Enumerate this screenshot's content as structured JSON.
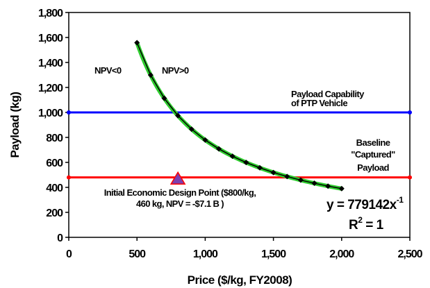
{
  "chart_data": {
    "type": "line",
    "xlabel": "Price ($/kg, FY2008)",
    "ylabel": "Payload (kg)",
    "xlim": [
      0,
      2500
    ],
    "ylim": [
      0,
      1800
    ],
    "x_ticks": [
      "0",
      "500",
      "1,000",
      "1,500",
      "2,000",
      "2,500"
    ],
    "y_ticks": [
      "0",
      "200",
      "400",
      "600",
      "800",
      "1,000",
      "1,200",
      "1,400",
      "1,600",
      "1,800"
    ],
    "grid": false,
    "series": [
      {
        "type": "line-markers",
        "color": "#000000",
        "x": [
          500,
          600,
          700,
          800,
          900,
          1000,
          1100,
          1200,
          1300,
          1400,
          1500,
          1600,
          1700,
          1800,
          1900,
          2000
        ],
        "y": [
          1558,
          1299,
          1113,
          974,
          866,
          779,
          708,
          649,
          599,
          557,
          519,
          487,
          458,
          433,
          410,
          390
        ]
      },
      {
        "type": "fit",
        "color": "#2ecc2e",
        "x_range": [
          500,
          2000
        ],
        "coefficient": 779142,
        "exponent": -1
      },
      {
        "type": "hline",
        "color": "#0000ff",
        "y": 1000
      },
      {
        "type": "hline",
        "color": "#ff0000",
        "y": 480
      },
      {
        "type": "point",
        "marker": "triangle",
        "fill": "#7b3fb0",
        "stroke": "#ff0000",
        "x": 800,
        "y": 460
      }
    ],
    "annotations": {
      "npv_lt": "NPV<0",
      "npv_gt": "NPV>0",
      "capability_1": "Payload Capability",
      "capability_2": "of PTP Vehicle",
      "baseline_1": "Baseline",
      "baseline_2": "\"Captured\"",
      "baseline_3": "Payload",
      "design_1": "Initial Economic Design Point ($800/kg,",
      "design_2": "460 kg, NPV = -$7.1 B )",
      "eq_main": "y = 779142x",
      "eq_exp": "-1",
      "r2_r": "R",
      "r2_sup": "2",
      "r2_rest": " = 1"
    }
  }
}
